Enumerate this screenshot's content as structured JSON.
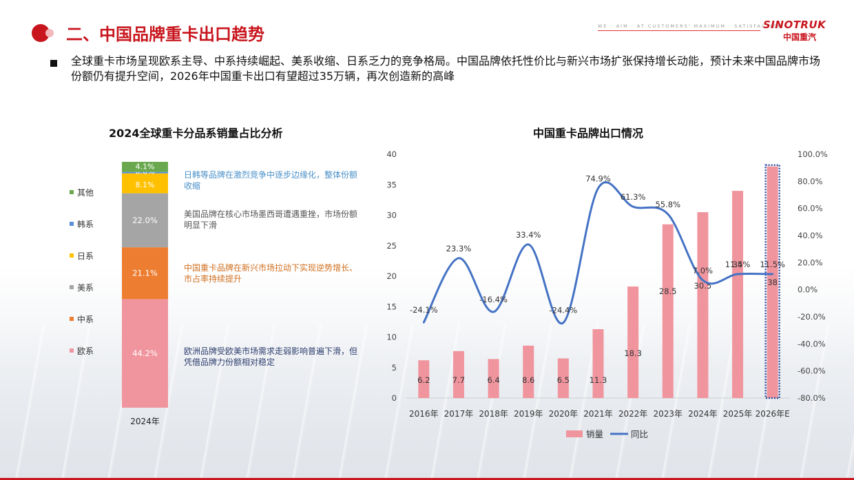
{
  "header": {
    "title": "二、中国品牌重卡出口趋势",
    "tagline": "WE · AIM · AT CUSTOMERS' MAXIMUM · SATISFACTION",
    "logo_en": "SINOTRUK",
    "logo_cn": "中国重汽"
  },
  "summary": "全球重卡市场呈现欧系主导、中系持续崛起、美系收缩、日系乏力的竞争格局。中国品牌依托性价比与新兴市场扩张保持增长动能，预计未来中国品牌市场份额仍有提升空间，2026年中国重卡出口有望超过35万辆，再次创造新的高峰",
  "notes": {
    "jk": "日韩等品牌在激烈竞争中逐步边缘化，整体份额收缩",
    "us": "美国品牌在核心市场墨西哥遭遇重挫，市场份额明显下滑",
    "cn": "中国重卡品牌在新兴市场拉动下实现逆势增长、市占率持续提升",
    "eu": "欧洲品牌受欧美市场需求走弱影响普遍下滑，但凭借品牌力份额相对稳定"
  },
  "colors": {
    "brand_red": "#c8151d",
    "other": "#6aa84f",
    "korea": "#5b8fd6",
    "japan": "#ffc000",
    "us": "#a5a5a5",
    "china": "#ed7d31",
    "europe": "#f0959e",
    "bar": "#f0959e",
    "line": "#4472c4",
    "note_jk": "#4a90c8",
    "note_us": "#555555",
    "note_cn": "#d07020",
    "note_eu": "#2e3f6e"
  },
  "chart_data": [
    {
      "type": "bar",
      "stacked": true,
      "title": "2024全球重卡分品系销量占比分析",
      "categories": [
        "2024年"
      ],
      "unit": "%",
      "series": [
        {
          "name": "欧系",
          "values": [
            44.2
          ],
          "label": "44.2%"
        },
        {
          "name": "中系",
          "values": [
            21.1
          ],
          "label": "21.1%"
        },
        {
          "name": "美系",
          "values": [
            22.0
          ],
          "label": "22.0%"
        },
        {
          "name": "日系",
          "values": [
            8.1
          ],
          "label": "8.1%"
        },
        {
          "name": "韩系",
          "values": [
            0.6
          ],
          "label": "0.6%"
        },
        {
          "name": "其他",
          "values": [
            4.1
          ],
          "label": "4.1%"
        }
      ],
      "legend": {
        "placement": "left",
        "order": [
          "其他",
          "韩系",
          "日系",
          "美系",
          "中系",
          "欧系"
        ]
      }
    },
    {
      "type": "bar+line",
      "title": "中国重卡品牌出口情况",
      "categories": [
        "2016年",
        "2017年",
        "2018年",
        "2019年",
        "2020年",
        "2021年",
        "2022年",
        "2023年",
        "2024年",
        "2025年",
        "2026年E"
      ],
      "series": [
        {
          "name": "销量",
          "type": "bar",
          "axis": "left",
          "values": [
            6.2,
            7.7,
            6.4,
            8.6,
            6.5,
            11.3,
            18.3,
            28.5,
            30.5,
            34,
            38
          ],
          "labels": [
            "6.2",
            "7.7",
            "6.4",
            "8.6",
            "6.5",
            "11.3",
            "18.3",
            "28.5",
            "30.5",
            "34",
            "38"
          ]
        },
        {
          "name": "同比",
          "type": "line",
          "axis": "right",
          "values": [
            -24.1,
            23.3,
            -16.4,
            33.4,
            -24.4,
            74.9,
            61.3,
            55.8,
            7.0,
            11.5,
            11.5
          ],
          "labels": [
            "-24.1%",
            "23.3%",
            "-16.4%",
            "33.4%",
            "-24.4%",
            "74.9%",
            "61.3%",
            "55.8%",
            "7.0%",
            "11.5%",
            "11.5%"
          ]
        }
      ],
      "yleft": {
        "min": 0,
        "max": 40,
        "step": 5,
        "ticks": [
          "0",
          "5",
          "10",
          "15",
          "20",
          "25",
          "30",
          "35",
          "40"
        ]
      },
      "yright": {
        "min": -80,
        "max": 100,
        "step": 20,
        "ticks": [
          "-80.0%",
          "-60.0%",
          "-40.0%",
          "-20.0%",
          "0.0%",
          "20.0%",
          "40.0%",
          "60.0%",
          "80.0%",
          "100.0%"
        ]
      },
      "highlight_category": "2026年E",
      "legend": {
        "placement": "bottom"
      },
      "grid": false
    }
  ]
}
